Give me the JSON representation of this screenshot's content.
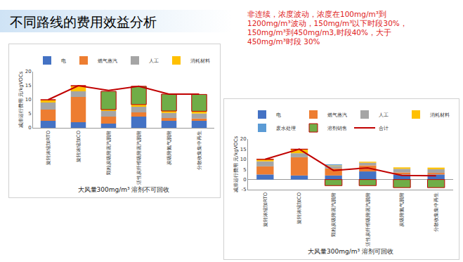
{
  "slide": {
    "title": "不同路线的费用效益分析",
    "note": "非连续，浓度波动，浓度在100mg/m³到1200mg/m³波动，150mg/m³以下时段30%，150mg/m³到450mg/m3,时段40%，大于450mg/m³时段 30%"
  },
  "chart_data": [
    {
      "type": "bar",
      "stacked": true,
      "legend": "top",
      "grid": false,
      "x_label": "大风量300mg/m³ 溶剂不可回收",
      "y_label": "减排运行费用 元/kgVOCs",
      "categories": [
        "旋转浓缩加RTO",
        "旋转浓缩加CO",
        "颗粒炭吸附蒸汽脱附",
        "活性炭纤维吸附蒸汽脱附",
        "炭吸附氮气脱附",
        "分散收集集中再生"
      ],
      "ylim": [
        0,
        20
      ],
      "yticks": [
        0,
        5,
        10,
        15,
        20
      ],
      "series": [
        {
          "name": "电",
          "color": "#4472c4",
          "type": "bar",
          "values": [
            2.5,
            2,
            1.5,
            4,
            2.5,
            2.5
          ]
        },
        {
          "name": "燃气蒸汽",
          "color": "#ed7d31",
          "type": "bar",
          "values": [
            4,
            9,
            2.5,
            1.5,
            1,
            0.8
          ]
        },
        {
          "name": "人工",
          "color": "#a5a5a5",
          "type": "bar",
          "values": [
            2.5,
            2,
            2,
            2,
            1.8,
            1.8
          ]
        },
        {
          "name": "消耗材料",
          "color": "#ffc000",
          "type": "bar",
          "values": [
            1,
            2,
            0.5,
            0.8,
            0.7,
            0.8
          ]
        },
        {
          "color": "#70ad47",
          "type": "bar",
          "values": [
            0,
            0,
            6.5,
            6.5,
            6,
            6
          ]
        },
        {
          "color": "#c00000",
          "type": "line",
          "values": [
            10,
            15,
            13.3,
            14.8,
            12,
            12
          ]
        }
      ]
    },
    {
      "type": "bar",
      "stacked": true,
      "legend": "top",
      "grid": false,
      "x_label": "大风量300mg/m³ 溶剂可回收",
      "y_label": "减排运行费用 元/kgVOCs",
      "categories": [
        "旋转浓缩加RTO",
        "旋转浓缩加CO",
        "颗粒炭吸附蒸汽脱附",
        "活性炭纤维吸附蒸汽脱附",
        "炭吸附氮气脱附",
        "分散收集集中再生"
      ],
      "ylim": [
        -5,
        20
      ],
      "yticks": [
        -5,
        0,
        5,
        10,
        15,
        20
      ],
      "series": [
        {
          "name": "电",
          "color": "#4472c4",
          "type": "bar",
          "values": [
            2.5,
            2,
            2,
            4,
            2.5,
            2.5
          ]
        },
        {
          "name": "燃气蒸汽",
          "color": "#ed7d31",
          "type": "bar",
          "values": [
            4,
            9,
            3.5,
            3,
            1,
            0.8
          ]
        },
        {
          "name": "人工",
          "color": "#a5a5a5",
          "type": "bar",
          "values": [
            2.5,
            2,
            1.2,
            1.3,
            1.8,
            1.8
          ]
        },
        {
          "name": "消耗材料",
          "color": "#ffc000",
          "type": "bar",
          "values": [
            1,
            2,
            0.3,
            0.5,
            0.7,
            0.8
          ]
        },
        {
          "name": "废水处理",
          "color": "#5b9bd5",
          "type": "bar",
          "values": [
            0,
            0,
            0.5,
            0,
            0,
            0
          ]
        },
        {
          "name": "溶剂销售",
          "color": "#70ad47",
          "type": "bar",
          "values": [
            0,
            0,
            -3,
            -3,
            -4,
            -4
          ]
        },
        {
          "name": "合计",
          "color": "#c00000",
          "type": "line",
          "values": [
            10,
            15,
            4.5,
            5.8,
            2,
            1.9
          ]
        }
      ]
    }
  ]
}
